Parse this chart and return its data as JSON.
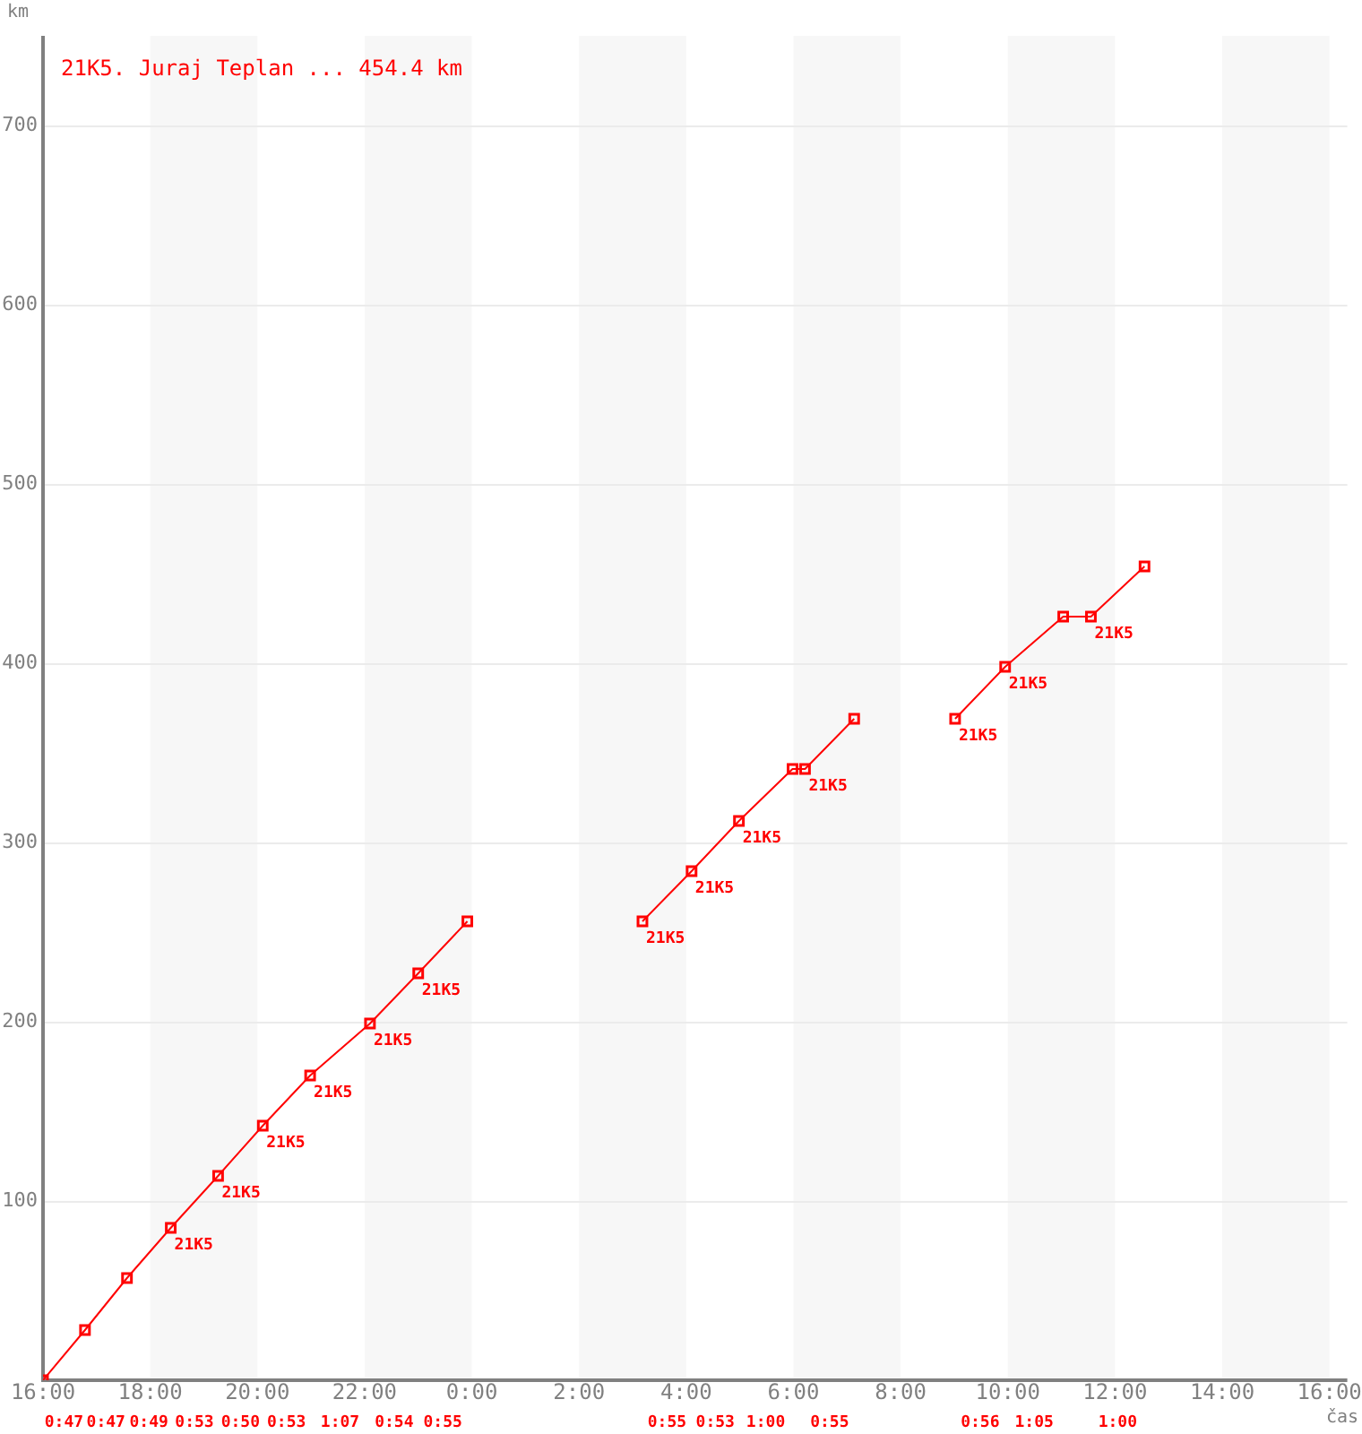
{
  "chart_data": {
    "type": "line",
    "title": "21K5. Juraj Teplan ... 454.4 km",
    "xlabel": "čas",
    "ylabel": "km",
    "series": [
      {
        "color": "#ff0000",
        "x": [
          "2000-01-01T16:00",
          "2000-01-01T16:47",
          "2000-01-01T17:34",
          "2000-01-01T18:23",
          "2000-01-01T19:16",
          "2000-01-01T20:06",
          "2000-01-01T20:59",
          "2000-01-01T22:06",
          "2000-01-01T23:00",
          "2000-01-01T23:55"
        ],
        "values": [
          0,
          28,
          57,
          85,
          114,
          142,
          170,
          199,
          227,
          256
        ]
      },
      {
        "color": "#ff0000",
        "x": [
          "2000-01-02T03:11",
          "2000-01-02T04:06",
          "2000-01-02T04:59",
          "2000-01-02T05:59",
          "2000-01-02T06:13",
          "2000-01-02T07:08"
        ],
        "values": [
          256,
          284,
          312,
          341,
          341,
          369
        ]
      },
      {
        "color": "#ff0000",
        "x": [
          "2000-01-02T09:01",
          "2000-01-02T09:57",
          "2000-01-02T11:02",
          "2000-01-02T11:33",
          "2000-01-02T12:33"
        ],
        "values": [
          369,
          398,
          426,
          426,
          454
        ]
      }
    ],
    "xlim": [
      "2000-01-01T16:00",
      "2000-01-02T16:20"
    ],
    "ylim": [
      0,
      750
    ],
    "xticks": [
      {
        "value": "2000-01-01T16:00",
        "label": "16:00"
      },
      {
        "value": "2000-01-01T18:00",
        "label": "18:00"
      },
      {
        "value": "2000-01-01T20:00",
        "label": "20:00"
      },
      {
        "value": "2000-01-01T22:00",
        "label": "22:00"
      },
      {
        "value": "2000-01-02T00:00",
        "label": "0:00"
      },
      {
        "value": "2000-01-02T02:00",
        "label": "2:00"
      },
      {
        "value": "2000-01-02T04:00",
        "label": "4:00"
      },
      {
        "value": "2000-01-02T06:00",
        "label": "6:00"
      },
      {
        "value": "2000-01-02T08:00",
        "label": "8:00"
      },
      {
        "value": "2000-01-02T10:00",
        "label": "10:00"
      },
      {
        "value": "2000-01-02T12:00",
        "label": "12:00"
      },
      {
        "value": "2000-01-02T14:00",
        "label": "14:00"
      },
      {
        "value": "2000-01-02T16:00",
        "label": "16:00"
      }
    ],
    "yticks": [
      100,
      200,
      300,
      400,
      500,
      600,
      700
    ],
    "bands": [
      {
        "axis": "x",
        "from": "2000-01-01T18:00",
        "to": "2000-01-01T20:00",
        "color": "#f7f7f7"
      },
      {
        "axis": "x",
        "from": "2000-01-01T22:00",
        "to": "2000-01-02T00:00",
        "color": "#f7f7f7"
      },
      {
        "axis": "x",
        "from": "2000-01-02T02:00",
        "to": "2000-01-02T04:00",
        "color": "#f7f7f7"
      },
      {
        "axis": "x",
        "from": "2000-01-02T06:00",
        "to": "2000-01-02T08:00",
        "color": "#f7f7f7"
      },
      {
        "axis": "x",
        "from": "2000-01-02T10:00",
        "to": "2000-01-02T12:00",
        "color": "#f7f7f7"
      },
      {
        "axis": "x",
        "from": "2000-01-02T14:00",
        "to": "2000-01-02T16:00",
        "color": "#f7f7f7"
      }
    ],
    "annotations": [
      {
        "text": "21K5",
        "x": "2000-01-01T18:23",
        "y": 85
      },
      {
        "text": "21K5",
        "x": "2000-01-01T19:16",
        "y": 114
      },
      {
        "text": "21K5",
        "x": "2000-01-01T20:06",
        "y": 142
      },
      {
        "text": "21K5",
        "x": "2000-01-01T20:59",
        "y": 170
      },
      {
        "text": "21K5",
        "x": "2000-01-01T22:06",
        "y": 199
      },
      {
        "text": "21K5",
        "x": "2000-01-01T23:00",
        "y": 227
      },
      {
        "text": "21K5",
        "x": "2000-01-02T03:11",
        "y": 256
      },
      {
        "text": "21K5",
        "x": "2000-01-02T04:06",
        "y": 284
      },
      {
        "text": "21K5",
        "x": "2000-01-02T04:59",
        "y": 312
      },
      {
        "text": "21K5",
        "x": "2000-01-02T06:13",
        "y": 341
      },
      {
        "text": "21K5",
        "x": "2000-01-02T09:01",
        "y": 369
      },
      {
        "text": "21K5",
        "x": "2000-01-02T09:57",
        "y": 398
      },
      {
        "text": "21K5",
        "x": "2000-01-02T11:33",
        "y": 426
      },
      "0:47",
      "0:47",
      "0:49",
      "0:53",
      "0:50",
      "0:53",
      "1:07",
      "0:54",
      "0:55",
      "0:55",
      "0:53",
      "1:00",
      "0:55",
      "0:56",
      "1:05",
      "1:00"
    ],
    "grid": "y",
    "marker": "square",
    "line_style": "solid",
    "legend": false
  }
}
